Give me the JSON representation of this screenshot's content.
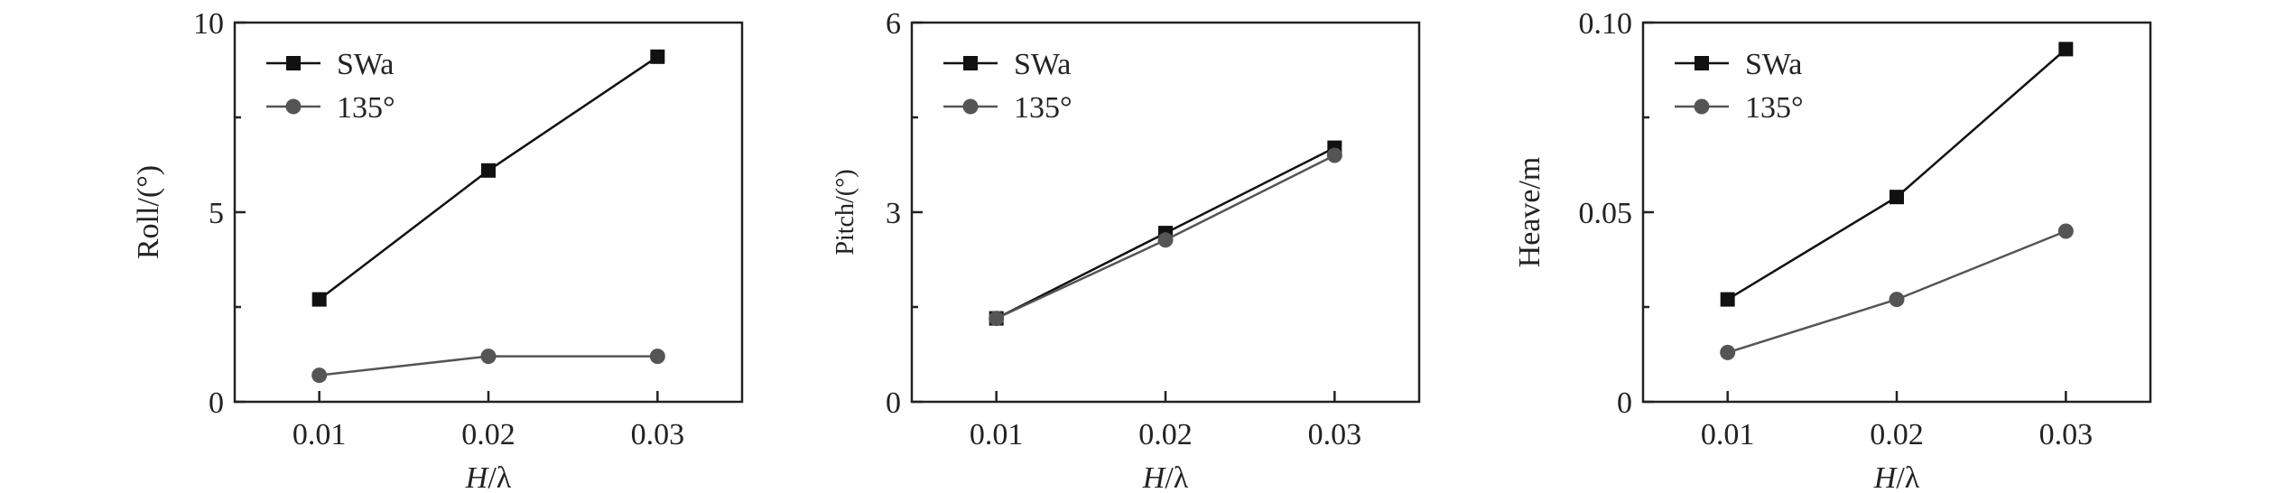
{
  "chart_data": [
    {
      "type": "line",
      "xlabel_italic": "H",
      "xlabel_rest": "/λ",
      "ylabel": "Roll/(°)",
      "x": [
        0.01,
        0.02,
        0.03
      ],
      "x_tick_labels": [
        "0.01",
        "0.02",
        "0.03"
      ],
      "xlim": [
        0.005,
        0.035
      ],
      "ylim": [
        0,
        10
      ],
      "y_ticks": [
        0,
        5,
        10
      ],
      "y_tick_labels": [
        "0",
        "5",
        "10"
      ],
      "grid": false,
      "legend_position": "top-left",
      "series": [
        {
          "name": "SWa",
          "values": [
            2.7,
            6.1,
            9.1
          ],
          "color": "#111111",
          "marker": "square"
        },
        {
          "name": "135°",
          "values": [
            0.7,
            1.2,
            1.2
          ],
          "color": "#555555",
          "marker": "circle"
        }
      ]
    },
    {
      "type": "line",
      "xlabel_italic": "H",
      "xlabel_rest": "/λ",
      "ylabel": "Pitch/(°)",
      "x": [
        0.01,
        0.02,
        0.03
      ],
      "x_tick_labels": [
        "0.01",
        "0.02",
        "0.03"
      ],
      "xlim": [
        0.005,
        0.035
      ],
      "ylim": [
        0,
        6
      ],
      "y_ticks": [
        0,
        3,
        6
      ],
      "y_tick_labels": [
        "0",
        "3",
        "6"
      ],
      "grid": false,
      "legend_position": "top-left",
      "series": [
        {
          "name": "SWa",
          "values": [
            1.32,
            2.67,
            4.02
          ],
          "color": "#111111",
          "marker": "square"
        },
        {
          "name": "135°",
          "values": [
            1.32,
            2.56,
            3.9
          ],
          "color": "#555555",
          "marker": "circle"
        }
      ]
    },
    {
      "type": "line",
      "xlabel_italic": "H",
      "xlabel_rest": "/λ",
      "ylabel": "Heave/m",
      "x": [
        0.01,
        0.02,
        0.03
      ],
      "x_tick_labels": [
        "0.01",
        "0.02",
        "0.03"
      ],
      "xlim": [
        0.005,
        0.035
      ],
      "ylim": [
        0,
        0.1
      ],
      "y_ticks": [
        0,
        0.05,
        0.1
      ],
      "y_tick_labels": [
        "0",
        "0.05",
        "0.10"
      ],
      "grid": false,
      "legend_position": "top-left",
      "series": [
        {
          "name": "SWa",
          "values": [
            0.027,
            0.054,
            0.093
          ],
          "color": "#111111",
          "marker": "square"
        },
        {
          "name": "135°",
          "values": [
            0.013,
            0.027,
            0.045
          ],
          "color": "#555555",
          "marker": "circle"
        }
      ]
    }
  ]
}
